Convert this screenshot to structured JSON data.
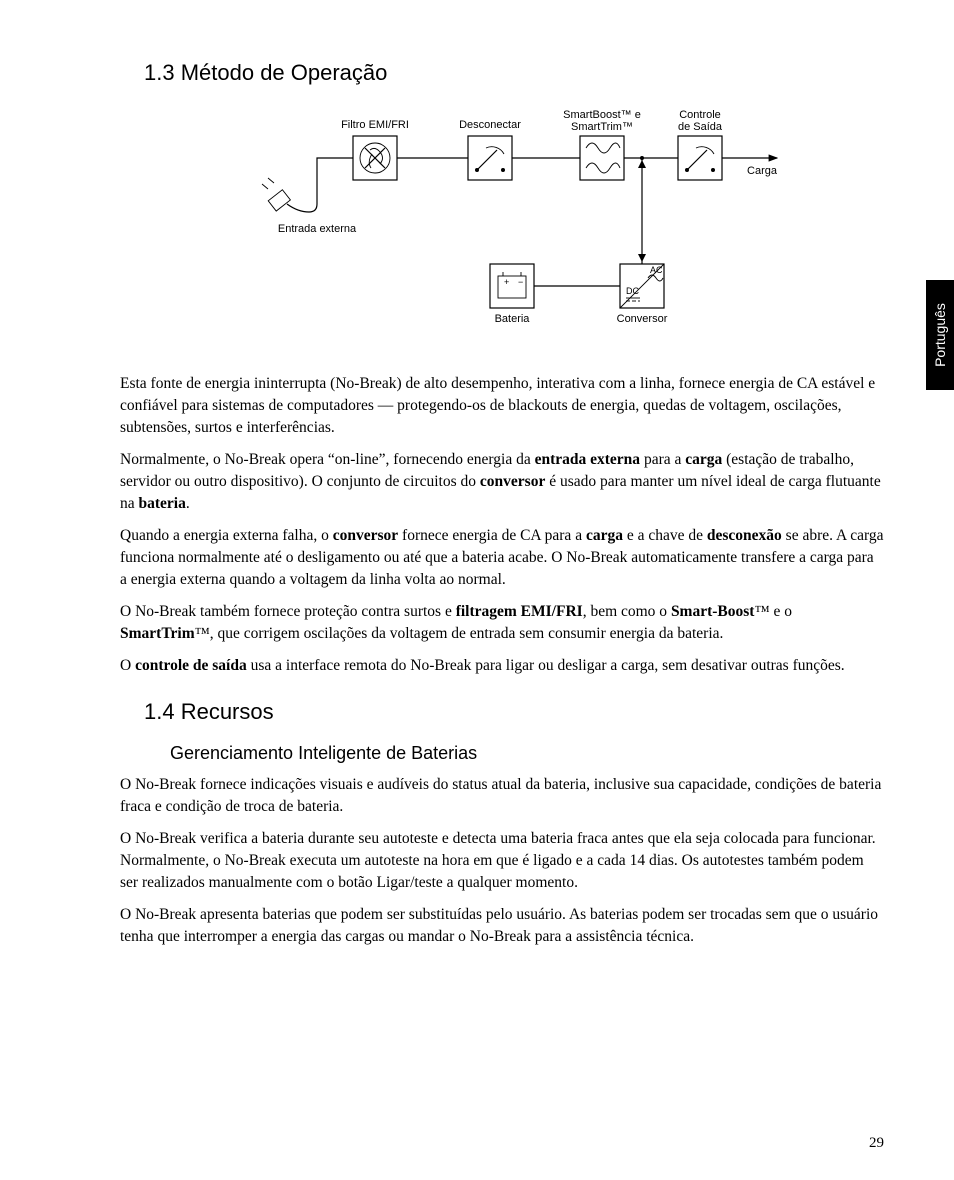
{
  "page_number": "29",
  "side_tab": "Português",
  "section_1_3": {
    "heading": "1.3 Método de Operação",
    "diagram": {
      "labels": {
        "filter": "Filtro EMI/FRI",
        "disconnect": "Desconectar",
        "smart_line1": "SmartBoost™ e",
        "smart_line2": "SmartTrim™",
        "output_line1": "Controle",
        "output_line2": "de Saída",
        "load": "Carga",
        "input": "Entrada externa",
        "battery": "Bateria",
        "converter": "Conversor",
        "ac": "AC",
        "dc": "DC"
      },
      "colors": {
        "stroke": "#000000",
        "bg": "#ffffff"
      }
    },
    "paragraphs": [
      "Esta fonte de energia ininterrupta (No-Break) de alto desempenho, interativa com a linha, fornece energia de CA estável e confiável para sistemas de computadores — protegendo-os de blackouts de energia, quedas de voltagem, oscilações, subtensões, surtos e interferências.",
      "Normalmente, o No-Break opera “on-line”, fornecendo energia da <b>entrada externa</b> para a <b>carga</b> (estação de trabalho, servidor ou outro dispositivo). O conjunto de circuitos do <b>conversor</b> é usado para manter um nível ideal de carga flutuante na <b>bateria</b>.",
      "Quando a energia externa falha, o <b>conversor</b> fornece energia de CA para a <b>carga</b> e a chave de <b>desconexão</b> se abre. A carga funciona normalmente até o desligamento ou até que a bateria acabe. O No-Break automaticamente transfere a carga para a energia externa quando a voltagem da linha volta ao normal.",
      "O No-Break também fornece proteção contra surtos e <b>filtragem EMI/FRI</b>, bem como o <b>Smart-Boost</b>™ e o <b>SmartTrim</b>™, que corrigem oscilações da voltagem de entrada sem consumir energia da bateria.",
      "O <b>controle de saída</b> usa a interface remota do No-Break para ligar ou desligar a carga, sem desativar outras funções."
    ]
  },
  "section_1_4": {
    "heading": "1.4 Recursos",
    "sub_heading": "Gerenciamento Inteligente de Baterias",
    "paragraphs": [
      "O No-Break fornece indicações visuais e audíveis do status atual da bateria, inclusive sua capacidade, condições de bateria fraca e condição de troca de bateria.",
      "O No-Break verifica a bateria durante seu autoteste e detecta uma bateria fraca antes que ela seja colocada para funcionar. Normalmente, o No-Break executa um autoteste na hora em que é ligado e a cada 14 dias. Os autotestes também podem ser realizados manualmente com o botão Ligar/teste a qualquer momento.",
      "O No-Break apresenta baterias que podem ser substituídas pelo usuário. As baterias podem ser trocadas sem que o usuário tenha que interromper a energia das cargas ou mandar o No-Break para a assistência técnica."
    ]
  }
}
